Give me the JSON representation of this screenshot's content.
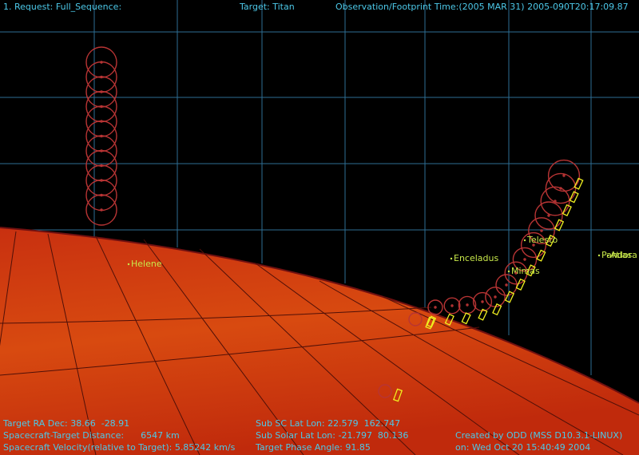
{
  "header": {
    "request": "1. Request: Full_Sequence:",
    "target": "Target: Titan",
    "time": "Observation/Footprint Time:(2005 MAR 31) 2005-090T20:17:09.87"
  },
  "labels": [
    "Helene",
    "Enceladus",
    "Telesto",
    "Mimas",
    "Pandora",
    "Atlas"
  ],
  "footer": {
    "left": [
      "Target RA Dec: 38.66  -28.91",
      "Spacecraft-Target Distance:      6547 km",
      "Spacecraft Velocity(relative to Target): 5.85242 km/s"
    ],
    "middle": [
      "Sub SC Lat Lon: 22.579  162.747",
      "Sub Solar Lat Lon: -21.797  80.136",
      "Target Phase Angle: 91.85"
    ],
    "right": [
      "Created by ODD (MSS D10.3.1-LINUX)",
      "on: Wed Oct 20 15:40:49 2004"
    ]
  }
}
